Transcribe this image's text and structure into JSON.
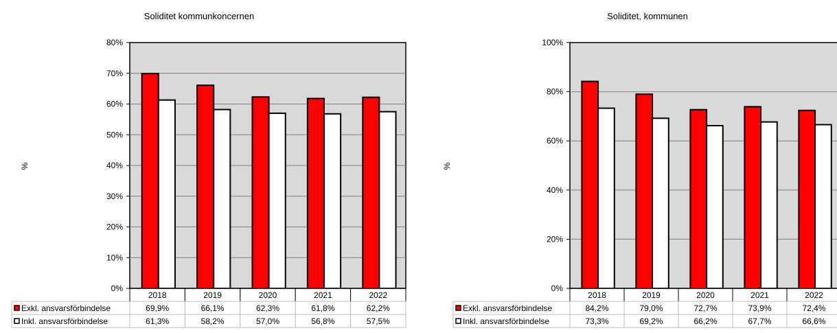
{
  "chart_data": [
    {
      "type": "bar",
      "title": "Soliditet kommunkoncernen",
      "ylabel": "%",
      "ylim": [
        0,
        80
      ],
      "yticks": [
        "0%",
        "10%",
        "20%",
        "30%",
        "40%",
        "50%",
        "60%",
        "70%",
        "80%"
      ],
      "y_tick_values": [
        0,
        10,
        20,
        30,
        40,
        50,
        60,
        70,
        80
      ],
      "grid": true,
      "legend": "data-table",
      "categories": [
        "2018",
        "2019",
        "2020",
        "2021",
        "2022"
      ],
      "series": [
        {
          "name": "Exkl. ansvarsförbindelse",
          "color": "#ff0000",
          "values": [
            69.9,
            66.1,
            62.3,
            61.8,
            62.2
          ],
          "labels": [
            "69,9%",
            "66,1%",
            "62,3%",
            "61,8%",
            "62,2%"
          ]
        },
        {
          "name": "Inkl. ansvarsförbindelse",
          "color": "#ffffff",
          "values": [
            61.3,
            58.2,
            57.0,
            56.8,
            57.5
          ],
          "labels": [
            "61,3%",
            "58,2%",
            "57,0%",
            "56,8%",
            "57,5%"
          ]
        }
      ]
    },
    {
      "type": "bar",
      "title": "Soliditet, kommunen",
      "ylabel": "%",
      "ylim": [
        0,
        100
      ],
      "yticks": [
        "0%",
        "20%",
        "40%",
        "60%",
        "80%",
        "100%"
      ],
      "y_tick_values": [
        0,
        20,
        40,
        60,
        80,
        100
      ],
      "grid": true,
      "legend": "data-table",
      "categories": [
        "2018",
        "2019",
        "2020",
        "2021",
        "2022"
      ],
      "series": [
        {
          "name": "Exkl. ansvarsförbindelse",
          "color": "#ff0000",
          "values": [
            84.2,
            79.0,
            72.7,
            73.9,
            72.4
          ],
          "labels": [
            "84,2%",
            "79,0%",
            "72,7%",
            "73,9%",
            "72,4%"
          ]
        },
        {
          "name": "Inkl. ansvarsförbindelse",
          "color": "#ffffff",
          "values": [
            73.3,
            69.2,
            66.2,
            67.7,
            66.6
          ],
          "labels": [
            "73,3%",
            "69,2%",
            "66,2%",
            "67,7%",
            "66,6%"
          ]
        }
      ]
    }
  ],
  "colors": {
    "plot_background": "#d9d9d9",
    "gridline": "#808080",
    "border": "#000000"
  }
}
